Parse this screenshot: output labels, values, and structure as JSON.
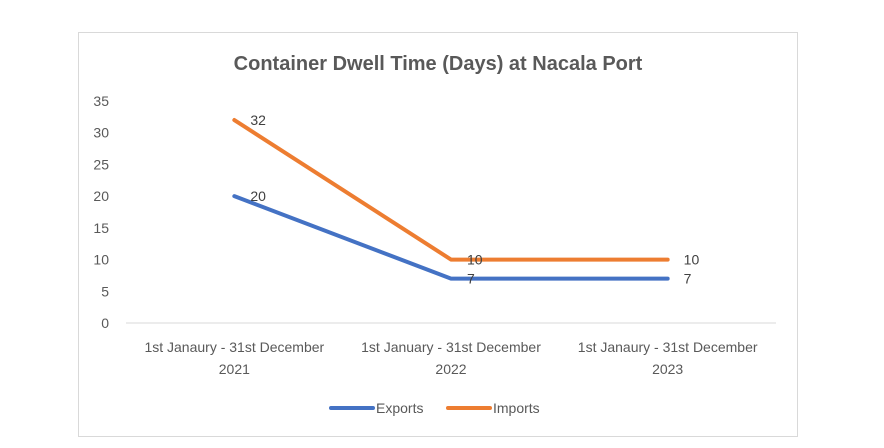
{
  "chart_data": {
    "type": "line",
    "title": "Container Dwell Time (Days) at Nacala Port",
    "categories": [
      [
        "1st Janaury - 31st December",
        "2021"
      ],
      [
        "1st January - 31st December",
        "2022"
      ],
      [
        "1st Janaury - 31st December",
        "2023"
      ]
    ],
    "series": [
      {
        "name": "Exports",
        "values": [
          20,
          7,
          7
        ],
        "color": "#4472c4"
      },
      {
        "name": "Imports",
        "values": [
          32,
          10,
          10
        ],
        "color": "#ed7d31"
      }
    ],
    "ylim": [
      0,
      35
    ],
    "yticks": [
      "0",
      "5",
      "10",
      "15",
      "20",
      "25",
      "30",
      "35"
    ],
    "grid": false,
    "legend": "bottom"
  }
}
